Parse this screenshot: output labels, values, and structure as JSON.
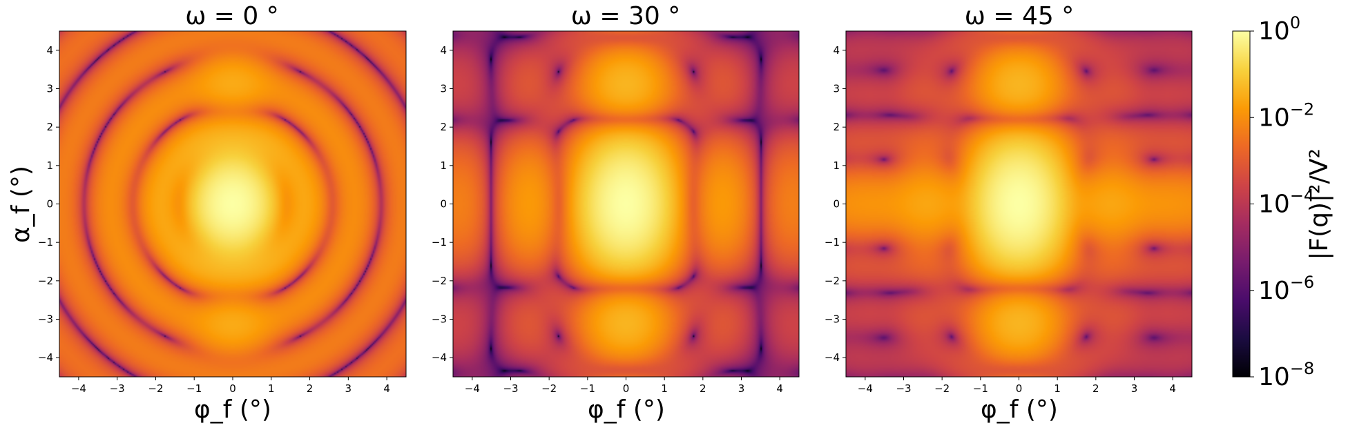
{
  "chart_data": [
    {
      "type": "heatmap",
      "title": "ω = 0 °",
      "xlabel": "φ_f (°)",
      "ylabel": "α_f (°)",
      "xlim": [
        -4.5,
        4.5
      ],
      "ylim": [
        -4.5,
        4.5
      ],
      "xticks": [
        -4,
        -3,
        -2,
        -1,
        0,
        1,
        2,
        3,
        4
      ],
      "yticks": [
        -4,
        -3,
        -2,
        -1,
        0,
        1,
        2,
        3,
        4
      ],
      "rotation_deg": 0,
      "pattern": "hexagonal-prism form factor, symmetric ring fringes, bright central lobe at (0,0)"
    },
    {
      "type": "heatmap",
      "title": "ω = 30 °",
      "xlabel": "φ_f (°)",
      "ylabel": "",
      "xlim": [
        -4.5,
        4.5
      ],
      "ylim": [
        -4.5,
        4.5
      ],
      "xticks": [
        -4,
        -3,
        -2,
        -1,
        0,
        1,
        2,
        3,
        4
      ],
      "yticks": [
        -4,
        -3,
        -2,
        -1,
        0,
        1,
        2,
        3,
        4
      ],
      "rotation_deg": 30,
      "pattern": "vertical bright streak |φ_f| < 1 with horizontal fringes, weaker lateral speckle"
    },
    {
      "type": "heatmap",
      "title": "ω = 45 °",
      "xlabel": "φ_f (°)",
      "ylabel": "",
      "xlim": [
        -4.5,
        4.5
      ],
      "ylim": [
        -4.5,
        4.5
      ],
      "xticks": [
        -4,
        -3,
        -2,
        -1,
        0,
        1,
        2,
        3,
        4
      ],
      "yticks": [
        -4,
        -3,
        -2,
        -1,
        0,
        1,
        2,
        3,
        4
      ],
      "rotation_deg": 45,
      "pattern": "vertical bright streak |φ_f| < 1 plus horizontal streak at α_f = 0, speckled background"
    }
  ],
  "colorbar": {
    "label": "|F(q)|²/V²",
    "scale": "log",
    "colormap": "inferno",
    "range": [
      1e-08,
      1
    ],
    "ticks": [
      {
        "value": 0,
        "base": "10",
        "exp": "0"
      },
      {
        "value": -2,
        "base": "10",
        "exp": "−2"
      },
      {
        "value": -4,
        "base": "10",
        "exp": "−4"
      },
      {
        "value": -6,
        "base": "10",
        "exp": "−6"
      },
      {
        "value": -8,
        "base": "10",
        "exp": "−8"
      }
    ]
  },
  "colors": {
    "inferno": [
      "#000004",
      "#1b0c41",
      "#4a0c6b",
      "#781c6d",
      "#a52c60",
      "#cf4446",
      "#ed6925",
      "#fb9b06",
      "#f7d13d",
      "#fcffa4"
    ]
  }
}
